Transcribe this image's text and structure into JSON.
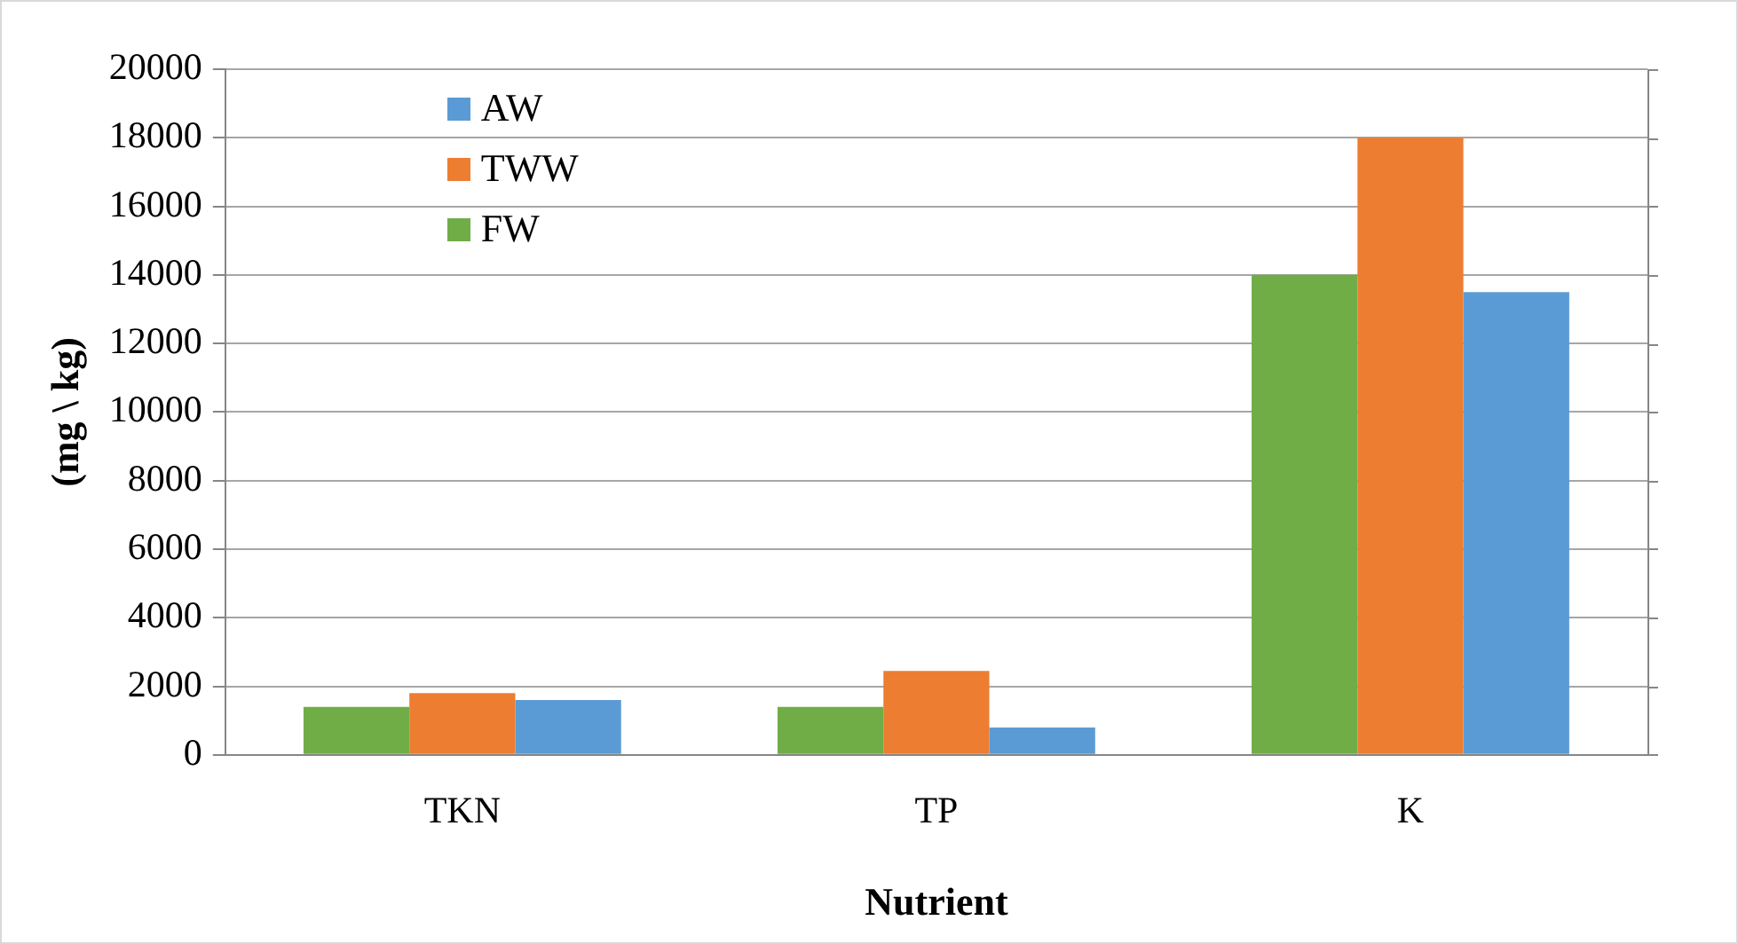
{
  "chart_data": {
    "type": "bar",
    "xlabel": "Nutrient",
    "ylabel": "(mg \\ kg)",
    "categories": [
      "TKN",
      "TP",
      "K"
    ],
    "series": [
      {
        "name": "FW",
        "color": "#70ad47",
        "values": [
          1400,
          1400,
          14000
        ]
      },
      {
        "name": "TWW",
        "color": "#ed7d31",
        "values": [
          1800,
          2450,
          18000
        ]
      },
      {
        "name": "AW",
        "color": "#5b9bd5",
        "values": [
          1600,
          800,
          13500
        ]
      }
    ],
    "ylim": [
      0,
      20000
    ],
    "yticks": [
      0,
      2000,
      4000,
      6000,
      8000,
      10000,
      12000,
      14000,
      16000,
      18000,
      20000
    ],
    "grid": "y",
    "legend": "top left"
  }
}
